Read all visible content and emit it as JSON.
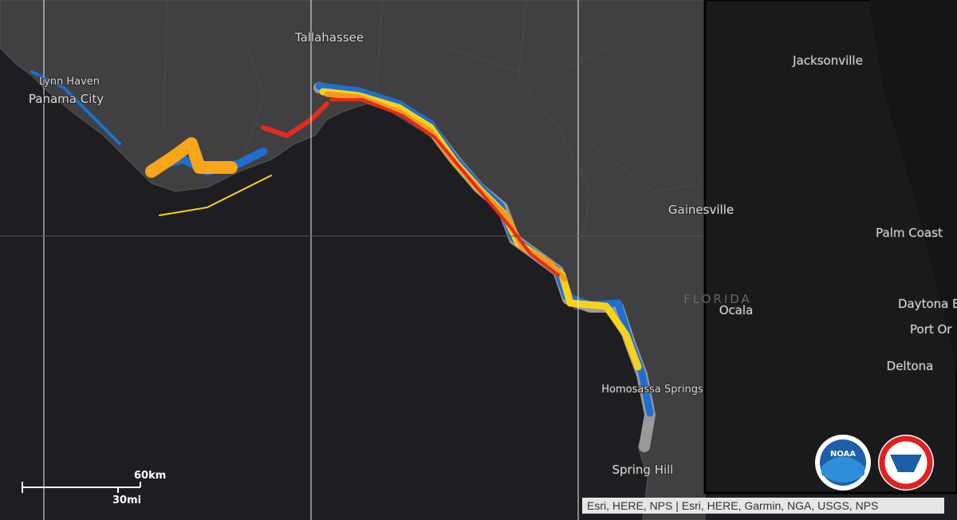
{
  "map": {
    "places": [
      "Tallahassee",
      "Lynn Haven",
      "Panama City",
      "Gainesville",
      "Ocala",
      "Homosassa Springs",
      "Spring Hill",
      "Jacksonville",
      "Palm Coast",
      "Daytona B",
      "Port Or",
      "Deltona"
    ],
    "region_label": "FLORIDA",
    "scale": {
      "km": "60km",
      "mi": "30mi"
    },
    "logos": [
      "NOAA"
    ],
    "attribution": "Esri, HERE, NPS | Esri, HERE, Garmin, NGA, USGS, NPS"
  }
}
